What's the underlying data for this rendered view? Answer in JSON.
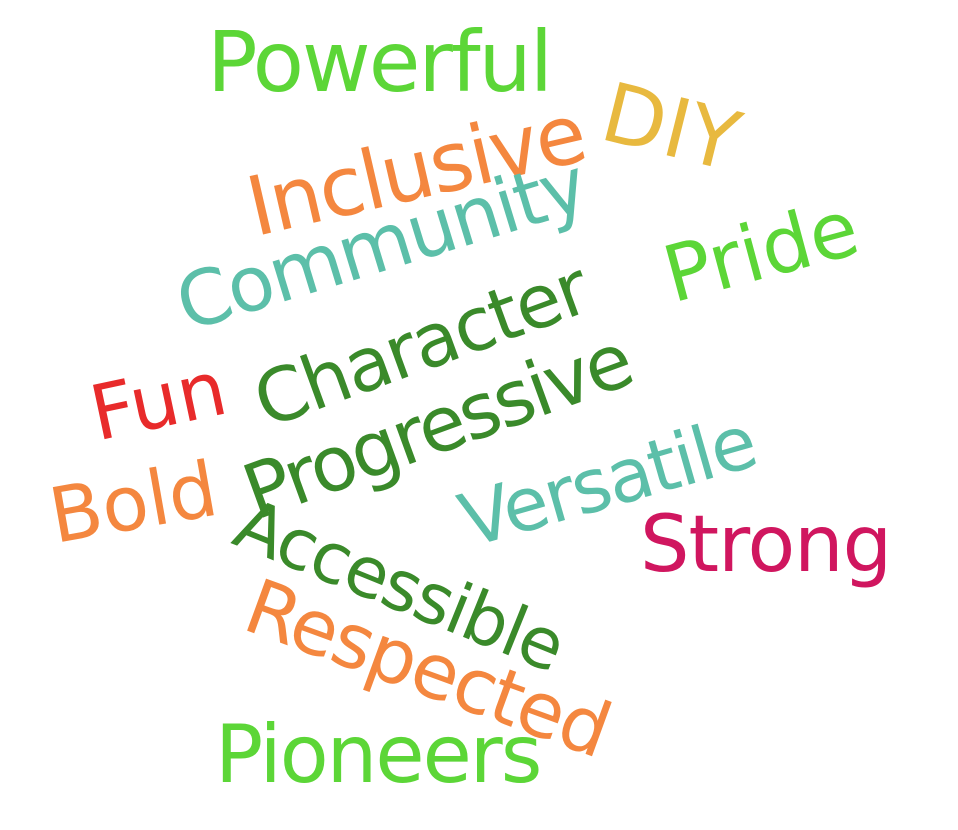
{
  "colors": {
    "light_green": "#5cd637",
    "dark_green": "#3a8a2a",
    "orange": "#f4873f",
    "teal": "#5cbfa9",
    "gold": "#e8b93f",
    "red": "#e82b2b",
    "magenta": "#d0165f",
    "background": "#ffffff"
  },
  "words": [
    {
      "text": "Powerful",
      "color": "#5cd637"
    },
    {
      "text": "DIY",
      "color": "#e8b93f"
    },
    {
      "text": "Inclusive",
      "color": "#f4873f"
    },
    {
      "text": "Community",
      "color": "#5cbfa9"
    },
    {
      "text": "Pride",
      "color": "#5cd637"
    },
    {
      "text": "Character",
      "color": "#3a8a2a"
    },
    {
      "text": "Fun",
      "color": "#e82b2b"
    },
    {
      "text": "Progressive",
      "color": "#3a8a2a"
    },
    {
      "text": "Bold",
      "color": "#f4873f"
    },
    {
      "text": "Versatile",
      "color": "#5cbfa9"
    },
    {
      "text": "Strong",
      "color": "#d0165f"
    },
    {
      "text": "Accessible",
      "color": "#3a8a2a"
    },
    {
      "text": "Respected",
      "color": "#f4873f"
    },
    {
      "text": "Pioneers",
      "color": "#5cd637"
    }
  ]
}
